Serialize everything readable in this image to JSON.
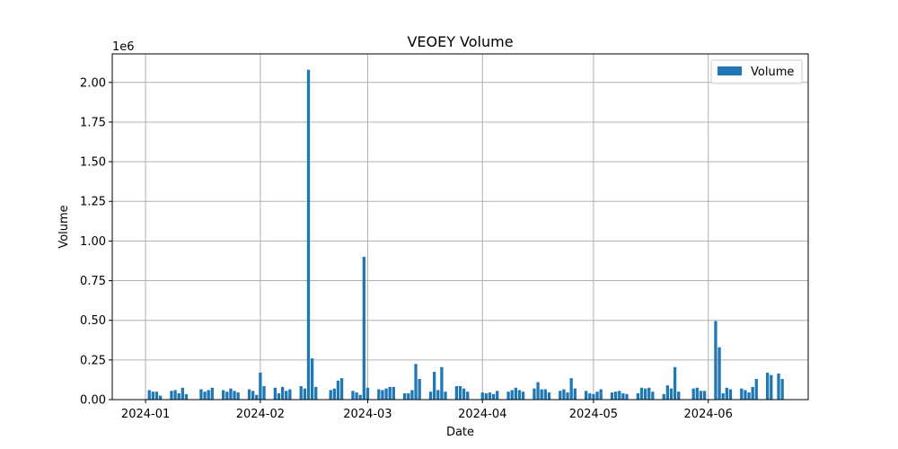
{
  "chart_data": {
    "type": "bar",
    "title": "VEOEY Volume",
    "xlabel": "Date",
    "ylabel": "Volume",
    "y_offset_label": "1e6",
    "ylim": [
      0,
      2180000
    ],
    "xlim": [
      "2023-12-23",
      "2024-06-28"
    ],
    "yticks": [
      0,
      250000,
      500000,
      750000,
      1000000,
      1250000,
      1500000,
      1750000,
      2000000
    ],
    "ytick_labels": [
      "0.00",
      "0.25",
      "0.50",
      "0.75",
      "1.00",
      "1.25",
      "1.50",
      "1.75",
      "2.00"
    ],
    "xticks": [
      "2024-01-01",
      "2024-02-01",
      "2024-03-01",
      "2024-04-01",
      "2024-05-01",
      "2024-06-01"
    ],
    "xtick_labels": [
      "2024-01",
      "2024-02",
      "2024-03",
      "2024-04",
      "2024-05",
      "2024-06"
    ],
    "grid": true,
    "bar_color": "#1f77b4",
    "legend": {
      "position": "top-right",
      "entries": [
        "Volume"
      ]
    },
    "series": [
      {
        "name": "Volume",
        "x": [
          "2024-01-02",
          "2024-01-03",
          "2024-01-04",
          "2024-01-05",
          "2024-01-08",
          "2024-01-09",
          "2024-01-10",
          "2024-01-11",
          "2024-01-12",
          "2024-01-16",
          "2024-01-17",
          "2024-01-18",
          "2024-01-19",
          "2024-01-22",
          "2024-01-23",
          "2024-01-24",
          "2024-01-25",
          "2024-01-26",
          "2024-01-29",
          "2024-01-30",
          "2024-01-31",
          "2024-02-01",
          "2024-02-02",
          "2024-02-05",
          "2024-02-06",
          "2024-02-07",
          "2024-02-08",
          "2024-02-09",
          "2024-02-12",
          "2024-02-13",
          "2024-02-14",
          "2024-02-15",
          "2024-02-16",
          "2024-02-20",
          "2024-02-21",
          "2024-02-22",
          "2024-02-23",
          "2024-02-26",
          "2024-02-27",
          "2024-02-28",
          "2024-02-29",
          "2024-03-01",
          "2024-03-04",
          "2024-03-05",
          "2024-03-06",
          "2024-03-07",
          "2024-03-08",
          "2024-03-11",
          "2024-03-12",
          "2024-03-13",
          "2024-03-14",
          "2024-03-15",
          "2024-03-18",
          "2024-03-19",
          "2024-03-20",
          "2024-03-21",
          "2024-03-22",
          "2024-03-25",
          "2024-03-26",
          "2024-03-27",
          "2024-03-28",
          "2024-04-01",
          "2024-04-02",
          "2024-04-03",
          "2024-04-04",
          "2024-04-05",
          "2024-04-08",
          "2024-04-09",
          "2024-04-10",
          "2024-04-11",
          "2024-04-12",
          "2024-04-15",
          "2024-04-16",
          "2024-04-17",
          "2024-04-18",
          "2024-04-19",
          "2024-04-22",
          "2024-04-23",
          "2024-04-24",
          "2024-04-25",
          "2024-04-26",
          "2024-04-29",
          "2024-04-30",
          "2024-05-01",
          "2024-05-02",
          "2024-05-03",
          "2024-05-06",
          "2024-05-07",
          "2024-05-08",
          "2024-05-09",
          "2024-05-10",
          "2024-05-13",
          "2024-05-14",
          "2024-05-15",
          "2024-05-16",
          "2024-05-17",
          "2024-05-20",
          "2024-05-21",
          "2024-05-22",
          "2024-05-23",
          "2024-05-24",
          "2024-05-28",
          "2024-05-29",
          "2024-05-30",
          "2024-05-31",
          "2024-06-03",
          "2024-06-04",
          "2024-06-05",
          "2024-06-06",
          "2024-06-07",
          "2024-06-10",
          "2024-06-11",
          "2024-06-12",
          "2024-06-13",
          "2024-06-14",
          "2024-06-17",
          "2024-06-18",
          "2024-06-20",
          "2024-06-21"
        ],
        "values": [
          60000,
          50000,
          50000,
          25000,
          55000,
          60000,
          40000,
          75000,
          35000,
          65000,
          50000,
          60000,
          75000,
          60000,
          50000,
          70000,
          55000,
          45000,
          65000,
          55000,
          30000,
          170000,
          85000,
          75000,
          40000,
          80000,
          55000,
          65000,
          85000,
          70000,
          2080000,
          260000,
          80000,
          60000,
          70000,
          120000,
          135000,
          55000,
          45000,
          30000,
          900000,
          75000,
          65000,
          60000,
          70000,
          80000,
          80000,
          40000,
          40000,
          60000,
          225000,
          130000,
          50000,
          175000,
          60000,
          205000,
          50000,
          85000,
          85000,
          70000,
          50000,
          45000,
          40000,
          45000,
          35000,
          55000,
          50000,
          60000,
          75000,
          60000,
          50000,
          70000,
          110000,
          65000,
          65000,
          45000,
          55000,
          65000,
          45000,
          135000,
          70000,
          55000,
          40000,
          35000,
          50000,
          65000,
          45000,
          50000,
          55000,
          40000,
          35000,
          40000,
          75000,
          70000,
          75000,
          50000,
          35000,
          90000,
          70000,
          205000,
          50000,
          70000,
          75000,
          55000,
          55000,
          495000,
          330000,
          40000,
          75000,
          65000,
          70000,
          60000,
          45000,
          80000,
          130000,
          170000,
          155000,
          165000,
          130000
        ]
      }
    ]
  }
}
